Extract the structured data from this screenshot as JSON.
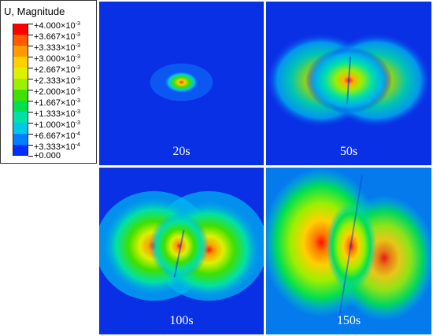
{
  "legend": {
    "title": "U, Magnitude",
    "labels": [
      {
        "mantissa": "+4.000×10",
        "exp": "-3"
      },
      {
        "mantissa": "+3.667×10",
        "exp": "-3"
      },
      {
        "mantissa": "+3.333×10",
        "exp": "-3"
      },
      {
        "mantissa": "+3.000×10",
        "exp": "-3"
      },
      {
        "mantissa": "+2.667×10",
        "exp": "-3"
      },
      {
        "mantissa": "+2.333×10",
        "exp": "-3"
      },
      {
        "mantissa": "+2.000×10",
        "exp": "-3"
      },
      {
        "mantissa": "+1.667×10",
        "exp": "-3"
      },
      {
        "mantissa": "+1.333×10",
        "exp": "-3"
      },
      {
        "mantissa": "+1.000×10",
        "exp": "-3"
      },
      {
        "mantissa": "+6.667×10",
        "exp": "-4"
      },
      {
        "mantissa": "+3.333×10",
        "exp": "-4"
      },
      {
        "mantissa": "+0.000",
        "exp": ""
      }
    ],
    "colors": [
      "#ff0000",
      "#ff5a00",
      "#ff9a00",
      "#ffd000",
      "#ddf000",
      "#9cef00",
      "#3fe000",
      "#00e050",
      "#00e0a8",
      "#00c8e8",
      "#0080ff",
      "#0030ff"
    ]
  },
  "panels": [
    {
      "time": "20s"
    },
    {
      "time": "50s"
    },
    {
      "time": "100s"
    },
    {
      "time": "150s"
    }
  ]
}
